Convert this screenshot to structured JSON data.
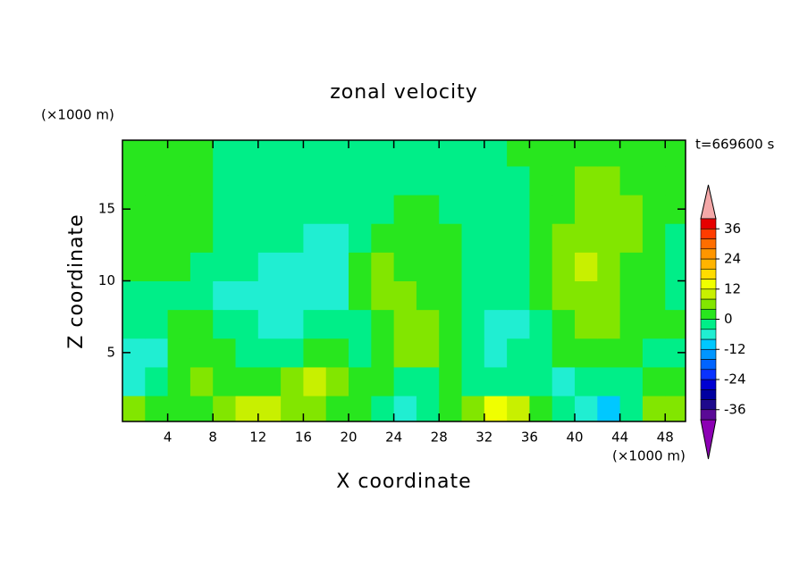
{
  "chart_data": {
    "type": "contour",
    "title": "zonal velocity",
    "xlabel": "X coordinate",
    "ylabel": "Z coordinate",
    "x_unit": "(×1000 m)",
    "y_unit": "(×1000 m)",
    "annotation": "t=669600 s",
    "x": [
      1,
      3,
      5,
      7,
      9,
      11,
      13,
      15,
      17,
      19,
      21,
      23,
      25,
      27,
      29,
      31,
      33,
      35,
      37,
      39,
      41,
      43,
      45,
      47,
      49
    ],
    "y": [
      1,
      3,
      5,
      7,
      9,
      11,
      13,
      15,
      17,
      19
    ],
    "z": [
      [
        6,
        2,
        2,
        2,
        6,
        10,
        10,
        6,
        6,
        2,
        2,
        -2,
        -6,
        -2,
        2,
        6,
        14,
        10,
        2,
        -2,
        -6,
        -10,
        -2,
        6,
        6
      ],
      [
        -6,
        -2,
        2,
        6,
        2,
        2,
        2,
        6,
        10,
        6,
        2,
        2,
        -2,
        -2,
        2,
        -2,
        -2,
        -2,
        -2,
        -6,
        -2,
        -2,
        -2,
        2,
        2
      ],
      [
        -6,
        -6,
        2,
        2,
        2,
        -2,
        -2,
        -2,
        2,
        2,
        -2,
        2,
        6,
        6,
        2,
        -2,
        -6,
        -2,
        -2,
        2,
        2,
        2,
        2,
        -2,
        -2
      ],
      [
        -2,
        -2,
        2,
        2,
        -2,
        -2,
        -6,
        -6,
        -2,
        -2,
        -2,
        2,
        6,
        6,
        2,
        -2,
        -6,
        -6,
        -2,
        2,
        6,
        6,
        2,
        2,
        2
      ],
      [
        -2,
        -2,
        -2,
        -2,
        -6,
        -6,
        -6,
        -6,
        -6,
        -6,
        2,
        6,
        6,
        2,
        2,
        -2,
        -2,
        -2,
        2,
        6,
        6,
        6,
        2,
        2,
        -2
      ],
      [
        2,
        2,
        2,
        -2,
        -2,
        -2,
        -6,
        -6,
        -6,
        -6,
        2,
        6,
        2,
        2,
        2,
        -2,
        -2,
        -2,
        2,
        6,
        10,
        6,
        2,
        2,
        -2
      ],
      [
        2,
        2,
        2,
        2,
        -2,
        -2,
        -2,
        -2,
        -6,
        -6,
        -2,
        2,
        2,
        2,
        2,
        -2,
        -2,
        -2,
        2,
        6,
        6,
        6,
        6,
        2,
        -2
      ],
      [
        2,
        2,
        2,
        2,
        -2,
        -2,
        -2,
        -2,
        -2,
        -2,
        -2,
        -2,
        2,
        2,
        -2,
        -2,
        -2,
        -2,
        2,
        2,
        6,
        6,
        6,
        2,
        2
      ],
      [
        2,
        2,
        2,
        2,
        -2,
        -2,
        -2,
        -2,
        -2,
        -2,
        -2,
        -2,
        -2,
        -2,
        -2,
        -2,
        -2,
        -2,
        2,
        2,
        6,
        6,
        2,
        2,
        2
      ],
      [
        2,
        2,
        2,
        2,
        -2,
        -2,
        -2,
        -2,
        -2,
        -2,
        -2,
        -2,
        -2,
        -2,
        -2,
        -2,
        -2,
        2,
        2,
        2,
        2,
        2,
        2,
        2,
        2
      ]
    ],
    "xlim": [
      0,
      49.8
    ],
    "ylim": [
      0.2,
      19.8
    ],
    "xticks": [
      4,
      8,
      12,
      16,
      20,
      24,
      28,
      32,
      36,
      40,
      44,
      48
    ],
    "yticks": [
      5,
      10,
      15
    ],
    "levels": [
      -40,
      -36,
      -32,
      -28,
      -24,
      -20,
      -16,
      -12,
      -8,
      -4,
      0,
      4,
      8,
      12,
      16,
      20,
      24,
      28,
      32,
      36,
      40
    ],
    "colorbar_ticks": [
      -36,
      -24,
      -12,
      0,
      12,
      24,
      36
    ],
    "colors": [
      "#5a0a96",
      "#1e0a8c",
      "#0000a0",
      "#0000d2",
      "#0a32ff",
      "#0064ff",
      "#0096ff",
      "#00c8ff",
      "#20eed2",
      "#00ee88",
      "#28e61e",
      "#82e600",
      "#c8f000",
      "#f0ff00",
      "#ffdc00",
      "#ffb400",
      "#ff9600",
      "#ff6e00",
      "#ff3c00",
      "#e60000"
    ],
    "under_color": "#8c00b4",
    "over_color": "#f4a8a8"
  }
}
